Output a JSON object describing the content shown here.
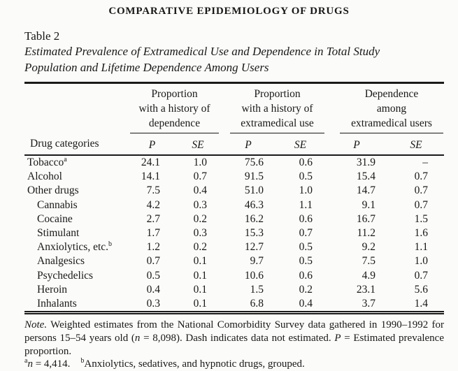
{
  "page": {
    "running_head": "COMPARATIVE EPIDEMIOLOGY OF DRUGS",
    "table_label": "Table 2",
    "title_line1": "Estimated Prevalence of Extramedical Use and Dependence in Total Study",
    "title_line2": "Population and Lifetime Dependence Among Users"
  },
  "table": {
    "row_header": "Drug categories",
    "col_groups": [
      {
        "line1": "Proportion",
        "line2": "with a history of",
        "line3": "dependence"
      },
      {
        "line1": "Proportion",
        "line2": "with a history of",
        "line3": "extramedical use"
      },
      {
        "line1": "Dependence",
        "line2": "among",
        "line3": "extramedical users"
      }
    ],
    "sub_headers": [
      "P",
      "SE",
      "P",
      "SE",
      "P",
      "SE"
    ],
    "rows": [
      {
        "label": "Tobacco",
        "sup": "a",
        "indent": false,
        "values": [
          "24.1",
          "1.0",
          "75.6",
          "0.6",
          "31.9",
          "–"
        ]
      },
      {
        "label": "Alcohol",
        "sup": "",
        "indent": false,
        "values": [
          "14.1",
          "0.7",
          "91.5",
          "0.5",
          "15.4",
          "0.7"
        ]
      },
      {
        "label": "Other drugs",
        "sup": "",
        "indent": false,
        "values": [
          "7.5",
          "0.4",
          "51.0",
          "1.0",
          "14.7",
          "0.7"
        ]
      },
      {
        "label": "Cannabis",
        "sup": "",
        "indent": true,
        "values": [
          "4.2",
          "0.3",
          "46.3",
          "1.1",
          "9.1",
          "0.7"
        ]
      },
      {
        "label": "Cocaine",
        "sup": "",
        "indent": true,
        "values": [
          "2.7",
          "0.2",
          "16.2",
          "0.6",
          "16.7",
          "1.5"
        ]
      },
      {
        "label": "Stimulant",
        "sup": "",
        "indent": true,
        "values": [
          "1.7",
          "0.3",
          "15.3",
          "0.7",
          "11.2",
          "1.6"
        ]
      },
      {
        "label": "Anxiolytics, etc.",
        "sup": "b",
        "indent": true,
        "values": [
          "1.2",
          "0.2",
          "12.7",
          "0.5",
          "9.2",
          "1.1"
        ]
      },
      {
        "label": "Analgesics",
        "sup": "",
        "indent": true,
        "values": [
          "0.7",
          "0.1",
          "9.7",
          "0.5",
          "7.5",
          "1.0"
        ]
      },
      {
        "label": "Psychedelics",
        "sup": "",
        "indent": true,
        "values": [
          "0.5",
          "0.1",
          "10.6",
          "0.6",
          "4.9",
          "0.7"
        ]
      },
      {
        "label": "Heroin",
        "sup": "",
        "indent": true,
        "values": [
          "0.4",
          "0.1",
          "1.5",
          "0.2",
          "23.1",
          "5.6"
        ]
      },
      {
        "label": "Inhalants",
        "sup": "",
        "indent": true,
        "values": [
          "0.3",
          "0.1",
          "6.8",
          "0.4",
          "3.7",
          "1.4"
        ]
      }
    ]
  },
  "note": {
    "lines": [
      {
        "justify": true,
        "segments": [
          {
            "t": "Note.",
            "i": true
          },
          {
            "t": " Weighted estimates from the National Comorbidity Survey data gathered in 1990–1992 for"
          }
        ]
      },
      {
        "justify": true,
        "segments": [
          {
            "t": "persons 15–54 years old ("
          },
          {
            "t": "n",
            "i": true
          },
          {
            "t": " = 8,098). Dash indicates data not estimated. "
          },
          {
            "t": "P",
            "i": true
          },
          {
            "t": " = Estimated prevalence"
          }
        ]
      },
      {
        "justify": false,
        "segments": [
          {
            "t": "proportion."
          }
        ]
      },
      {
        "justify": false,
        "segments": [
          {
            "t": "a",
            "sup": true
          },
          {
            "t": "n",
            "i": true
          },
          {
            "t": " = 4,414.",
            "i": false
          },
          {
            "t": "    "
          },
          {
            "t": "b",
            "sup": true
          },
          {
            "t": "Anxiolytics, sedatives, and hypnotic drugs, grouped."
          }
        ]
      }
    ]
  }
}
